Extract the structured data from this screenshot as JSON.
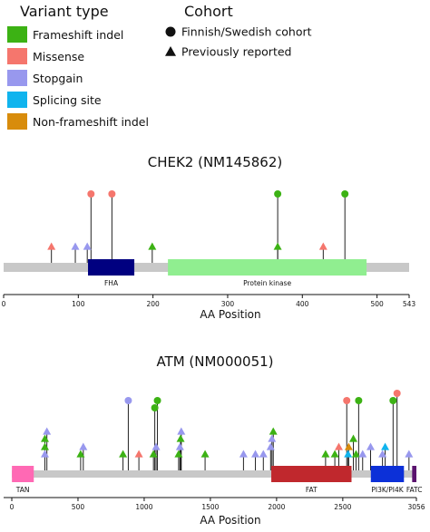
{
  "legend": {
    "variant_title": "Variant type",
    "cohort_title": "Cohort",
    "variant_types": [
      {
        "key": "frameshift",
        "label": "Frameshift indel",
        "color": "#3cb214"
      },
      {
        "key": "missense",
        "label": "Missense",
        "color": "#f5766d"
      },
      {
        "key": "stopgain",
        "label": "Stopgain",
        "color": "#9898ee"
      },
      {
        "key": "splicing",
        "label": "Splicing site",
        "color": "#10b4ee"
      },
      {
        "key": "nonframeshift",
        "label": "Non-frameshift indel",
        "color": "#d88c0c"
      }
    ],
    "cohorts": [
      {
        "key": "finnish",
        "label": "Finnish/Swedish cohort",
        "marker": "circle"
      },
      {
        "key": "previous",
        "label": "Previously reported",
        "marker": "triangle"
      }
    ]
  },
  "chart_data": [
    {
      "type": "lollipop",
      "title": "CHEK2 (NM145862)",
      "xlabel": "AA Position",
      "length": 543,
      "xlim": [
        0,
        543
      ],
      "ticks": [
        0,
        100,
        200,
        300,
        400,
        500,
        543
      ],
      "domains": [
        {
          "name": "FHA",
          "start": 113,
          "end": 175,
          "color": "#000080"
        },
        {
          "name": "Protein kinase",
          "start": 220,
          "end": 486,
          "color": "#90ee90"
        }
      ],
      "variants": [
        {
          "pos": 64,
          "type": "missense",
          "cohort": "previous",
          "level": 1
        },
        {
          "pos": 96,
          "type": "stopgain",
          "cohort": "previous",
          "level": 1
        },
        {
          "pos": 112,
          "type": "stopgain",
          "cohort": "previous",
          "level": 1
        },
        {
          "pos": 117,
          "type": "missense",
          "cohort": "finnish",
          "level": 3
        },
        {
          "pos": 145,
          "type": "missense",
          "cohort": "finnish",
          "level": 3
        },
        {
          "pos": 199,
          "type": "frameshift",
          "cohort": "previous",
          "level": 1
        },
        {
          "pos": 367,
          "type": "frameshift",
          "cohort": "previous",
          "level": 1
        },
        {
          "pos": 367,
          "type": "frameshift",
          "cohort": "finnish",
          "level": 3
        },
        {
          "pos": 428,
          "type": "missense",
          "cohort": "previous",
          "level": 1
        },
        {
          "pos": 457,
          "type": "frameshift",
          "cohort": "finnish",
          "level": 3
        }
      ]
    },
    {
      "type": "lollipop",
      "title": "ATM (NM000051)",
      "xlabel": "AA Position",
      "length": 3056,
      "xlim": [
        0,
        3056
      ],
      "ticks": [
        0,
        500,
        1000,
        1500,
        2000,
        2500,
        3056
      ],
      "domains": [
        {
          "name": "TAN",
          "start": 1,
          "end": 166,
          "color": "#ff69b4"
        },
        {
          "name": "FAT",
          "start": 1960,
          "end": 2566,
          "color": "#c0282d"
        },
        {
          "name": "PI3K/PI4K",
          "start": 2712,
          "end": 2962,
          "color": "#0c30d8"
        },
        {
          "name": "FATC",
          "start": 3024,
          "end": 3056,
          "color": "#5a126e"
        }
      ],
      "variants": [
        {
          "pos": 250,
          "type": "stopgain",
          "cohort": "previous",
          "level": 1
        },
        {
          "pos": 250,
          "type": "frameshift",
          "cohort": "previous",
          "level": 2
        },
        {
          "pos": 250,
          "type": "frameshift",
          "cohort": "previous",
          "level": 3
        },
        {
          "pos": 265,
          "type": "stopgain",
          "cohort": "previous",
          "level": 4
        },
        {
          "pos": 520,
          "type": "frameshift",
          "cohort": "previous",
          "level": 1
        },
        {
          "pos": 540,
          "type": "stopgain",
          "cohort": "previous",
          "level": 2
        },
        {
          "pos": 840,
          "type": "frameshift",
          "cohort": "previous",
          "level": 1
        },
        {
          "pos": 880,
          "type": "stopgain",
          "cohort": "finnish",
          "level": 7
        },
        {
          "pos": 960,
          "type": "missense",
          "cohort": "previous",
          "level": 1
        },
        {
          "pos": 1070,
          "type": "frameshift",
          "cohort": "previous",
          "level": 1
        },
        {
          "pos": 1080,
          "type": "frameshift",
          "cohort": "finnish",
          "level": 6
        },
        {
          "pos": 1090,
          "type": "stopgain",
          "cohort": "previous",
          "level": 2
        },
        {
          "pos": 1100,
          "type": "frameshift",
          "cohort": "finnish",
          "level": 7
        },
        {
          "pos": 1260,
          "type": "frameshift",
          "cohort": "previous",
          "level": 1
        },
        {
          "pos": 1270,
          "type": "stopgain",
          "cohort": "previous",
          "level": 2
        },
        {
          "pos": 1275,
          "type": "frameshift",
          "cohort": "previous",
          "level": 3
        },
        {
          "pos": 1280,
          "type": "stopgain",
          "cohort": "previous",
          "level": 4
        },
        {
          "pos": 1460,
          "type": "frameshift",
          "cohort": "previous",
          "level": 1
        },
        {
          "pos": 1750,
          "type": "stopgain",
          "cohort": "previous",
          "level": 1
        },
        {
          "pos": 1840,
          "type": "stopgain",
          "cohort": "previous",
          "level": 1
        },
        {
          "pos": 1900,
          "type": "stopgain",
          "cohort": "previous",
          "level": 1
        },
        {
          "pos": 1955,
          "type": "stopgain",
          "cohort": "previous",
          "level": 2
        },
        {
          "pos": 1965,
          "type": "stopgain",
          "cohort": "previous",
          "level": 3
        },
        {
          "pos": 1975,
          "type": "frameshift",
          "cohort": "previous",
          "level": 4
        },
        {
          "pos": 2370,
          "type": "frameshift",
          "cohort": "previous",
          "level": 1
        },
        {
          "pos": 2440,
          "type": "frameshift",
          "cohort": "previous",
          "level": 1
        },
        {
          "pos": 2470,
          "type": "missense",
          "cohort": "previous",
          "level": 2
        },
        {
          "pos": 2530,
          "type": "missense",
          "cohort": "finnish",
          "level": 7
        },
        {
          "pos": 2540,
          "type": "splicing",
          "cohort": "previous",
          "level": 1
        },
        {
          "pos": 2545,
          "type": "nonframeshift",
          "cohort": "previous",
          "level": 2
        },
        {
          "pos": 2580,
          "type": "frameshift",
          "cohort": "previous",
          "level": 3
        },
        {
          "pos": 2600,
          "type": "frameshift",
          "cohort": "previous",
          "level": 1
        },
        {
          "pos": 2620,
          "type": "frameshift",
          "cohort": "finnish",
          "level": 7
        },
        {
          "pos": 2650,
          "type": "stopgain",
          "cohort": "previous",
          "level": 1
        },
        {
          "pos": 2710,
          "type": "stopgain",
          "cohort": "previous",
          "level": 2
        },
        {
          "pos": 2800,
          "type": "stopgain",
          "cohort": "previous",
          "level": 1
        },
        {
          "pos": 2820,
          "type": "splicing",
          "cohort": "previous",
          "level": 2
        },
        {
          "pos": 2880,
          "type": "frameshift",
          "cohort": "finnish",
          "level": 7
        },
        {
          "pos": 2910,
          "type": "missense",
          "cohort": "finnish",
          "level": 8
        },
        {
          "pos": 3000,
          "type": "stopgain",
          "cohort": "previous",
          "level": 1
        }
      ]
    }
  ]
}
